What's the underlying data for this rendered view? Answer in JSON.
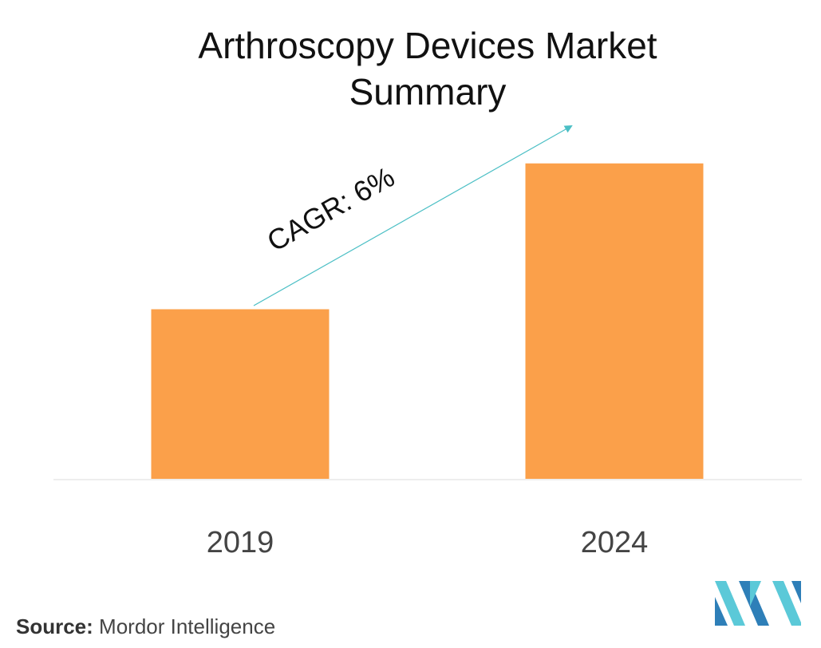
{
  "title_line1": "Arthroscopy Devices Market",
  "title_line2": "Summary",
  "source_label": "Source:",
  "source_name": "Mordor Intelligence",
  "colors": {
    "bar": "#FBA04A",
    "arrow": "#4BBFC5",
    "axis": "#DDDDDD",
    "logo_light": "#5BC9D8",
    "logo_dark": "#2E7FB8"
  },
  "chart_data": {
    "type": "bar",
    "categories": [
      "2019",
      "2024"
    ],
    "values": [
      1.0,
      1.86
    ],
    "annotation": "CAGR: 6%",
    "ylim": [
      0,
      2.0
    ],
    "grid": false,
    "legend": "none"
  }
}
